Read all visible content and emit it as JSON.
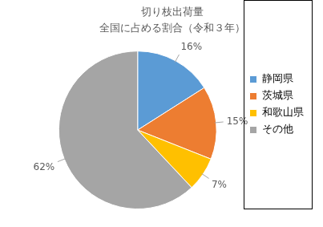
{
  "chart_data": {
    "type": "pie",
    "title": "切り枝出荷量",
    "subtitle": "全国に占める割合（令和３年）",
    "categories": [
      "静岡県",
      "茨城県",
      "和歌山県",
      "その他"
    ],
    "values": [
      16,
      15,
      7,
      62
    ],
    "value_labels": [
      "16%",
      "15%",
      "7%",
      "62%"
    ],
    "colors": [
      "#5b9bd5",
      "#ed7d31",
      "#ffc000",
      "#a5a5a5"
    ],
    "data_labels": true,
    "legend": "right"
  }
}
